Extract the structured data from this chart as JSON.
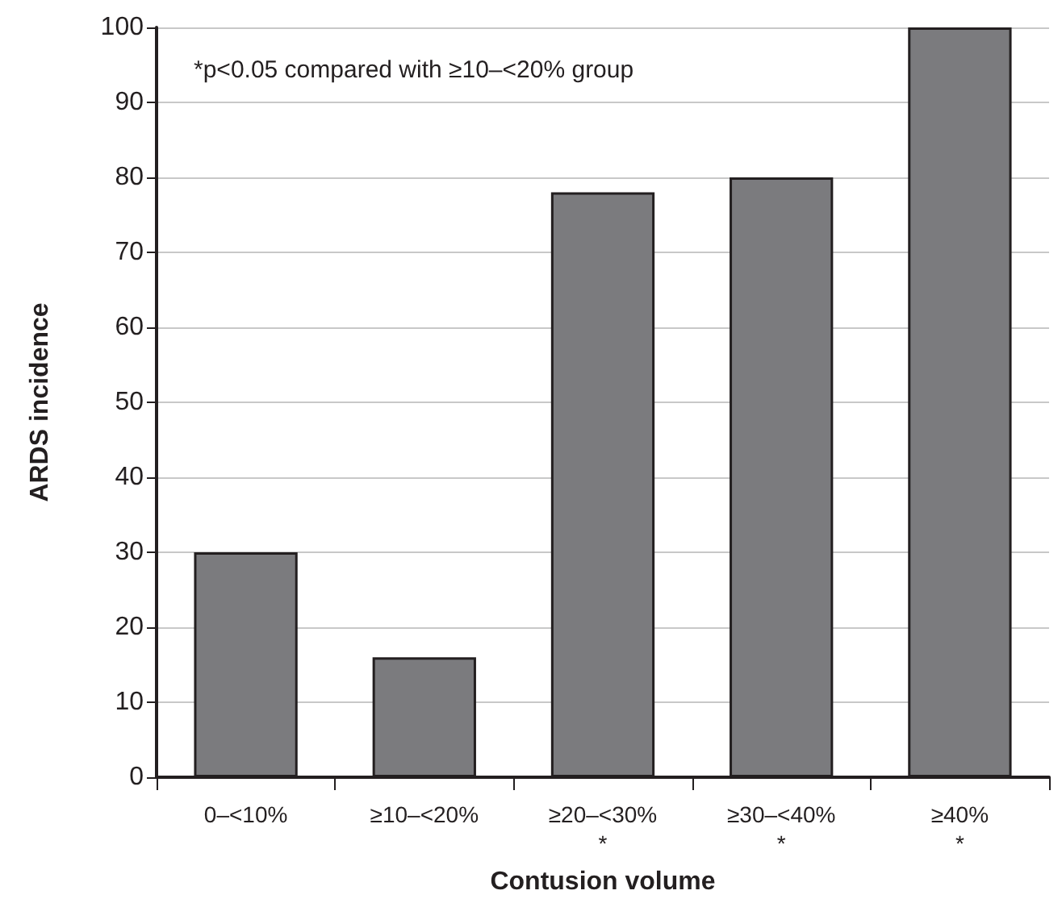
{
  "chart_data": {
    "type": "bar",
    "xlabel": "Contusion volume",
    "ylabel": "ARDS incidence",
    "categories": [
      "0–<10%",
      "≥10–<20%",
      "≥20–<30%\n*",
      "≥30–<40%\n*",
      "≥40%\n*"
    ],
    "values": [
      30,
      16,
      78,
      80,
      100
    ],
    "color": "#7b7b7e",
    "ylim": [
      0,
      100
    ],
    "yticks": [
      0,
      10,
      20,
      30,
      40,
      50,
      60,
      70,
      80,
      90,
      100
    ],
    "grid": "y",
    "annotations": [
      "*p<0.05 compared with ≥10–<20% group"
    ]
  }
}
